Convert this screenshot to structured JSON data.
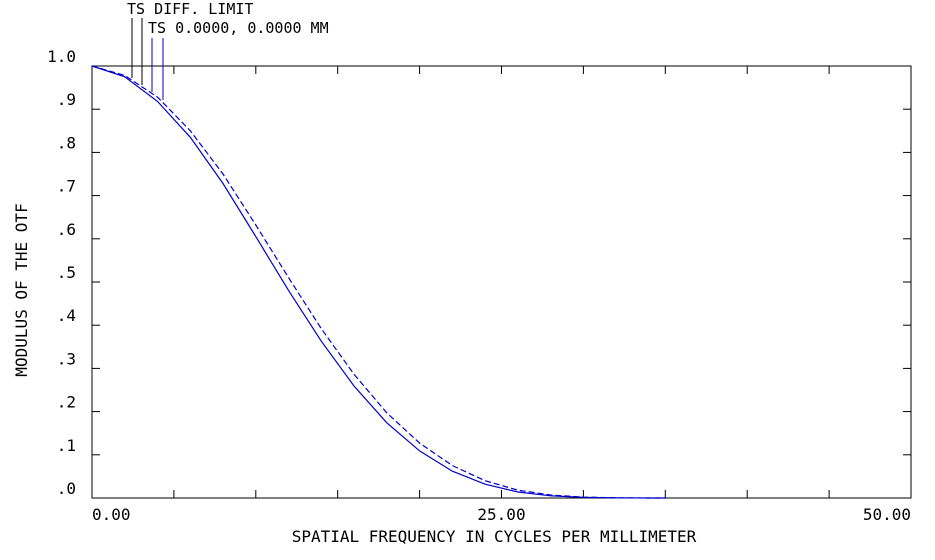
{
  "chart_data": {
    "type": "line",
    "xlabel": "SPATIAL FREQUENCY IN CYCLES PER MILLIMETER",
    "ylabel": "MODULUS OF THE OTF",
    "xlim": [
      0,
      50
    ],
    "ylim": [
      0,
      1
    ],
    "x_ticks": [
      0,
      25,
      50
    ],
    "x_tick_labels": [
      "0.00",
      "25.00",
      "50.00"
    ],
    "y_ticks": [
      0,
      0.1,
      0.2,
      0.3,
      0.4,
      0.5,
      0.6,
      0.7,
      0.8,
      0.9,
      1.0
    ],
    "y_tick_labels": [
      ".0",
      ".1",
      ".2",
      ".3",
      ".4",
      ".5",
      ".6",
      ".7",
      ".8",
      ".9",
      "1.0"
    ],
    "grid": false,
    "legend": {
      "placement": "top-left",
      "entries": [
        "TS DIFF. LIMIT",
        "TS 0.0000, 0.0000 MM"
      ]
    },
    "series": [
      {
        "name": "TS DIFF. LIMIT",
        "style": "dashed",
        "x": [
          0,
          2,
          4,
          6,
          8,
          10,
          12,
          14,
          16,
          18,
          20,
          22,
          24,
          26,
          28,
          30,
          32,
          34,
          35
        ],
        "y": [
          1.0,
          0.978,
          0.928,
          0.85,
          0.75,
          0.632,
          0.51,
          0.392,
          0.286,
          0.197,
          0.127,
          0.075,
          0.04,
          0.018,
          0.007,
          0.002,
          0.0005,
          0.0001,
          0.0
        ]
      },
      {
        "name": "TS 0.0000, 0.0000 MM",
        "style": "solid",
        "x": [
          0,
          2,
          4,
          6,
          8,
          10,
          12,
          14,
          16,
          18,
          20,
          22,
          24,
          26,
          28,
          30,
          32,
          34,
          35
        ],
        "y": [
          1.0,
          0.975,
          0.918,
          0.835,
          0.728,
          0.605,
          0.48,
          0.363,
          0.259,
          0.174,
          0.109,
          0.062,
          0.032,
          0.014,
          0.005,
          0.0015,
          0.0003,
          0.0,
          0.0
        ]
      }
    ],
    "colors": {
      "curve": "#0000cc",
      "axes": "#000000"
    }
  }
}
